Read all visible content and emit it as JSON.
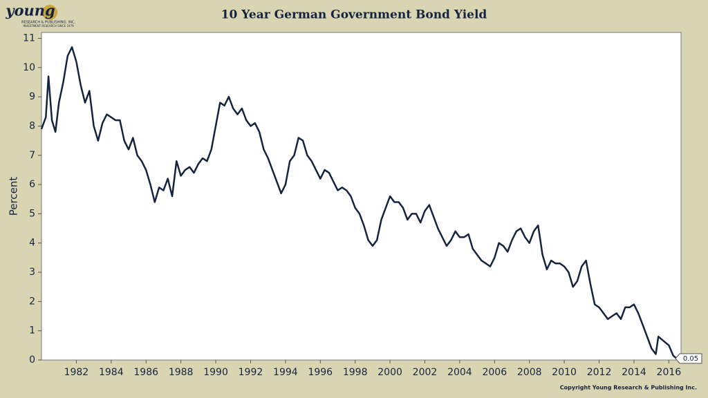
{
  "logo": {
    "name": "young",
    "line1": "RESEARCH & PUBLISHING, INC.",
    "line2": "INVESTMENT RESEARCH SINCE 1979"
  },
  "copyright": "Copyright Young Research & Publishing Inc.",
  "chart_data": {
    "type": "line",
    "title": "10 Year German Government Bond Yield",
    "y_label": "Percent",
    "color": "#14243f",
    "x": [
      1980.0,
      1980.25,
      1980.4,
      1980.6,
      1980.8,
      1981.0,
      1981.25,
      1981.5,
      1981.75,
      1982.0,
      1982.25,
      1982.5,
      1982.75,
      1983.0,
      1983.25,
      1983.5,
      1983.75,
      1984.0,
      1984.25,
      1984.5,
      1984.75,
      1985.0,
      1985.25,
      1985.5,
      1985.75,
      1986.0,
      1986.25,
      1986.5,
      1986.75,
      1987.0,
      1987.25,
      1987.5,
      1987.75,
      1988.0,
      1988.25,
      1988.5,
      1988.75,
      1989.0,
      1989.25,
      1989.5,
      1989.75,
      1990.0,
      1990.25,
      1990.5,
      1990.75,
      1991.0,
      1991.25,
      1991.5,
      1991.75,
      1992.0,
      1992.25,
      1992.5,
      1992.75,
      1993.0,
      1993.25,
      1993.5,
      1993.75,
      1994.0,
      1994.25,
      1994.5,
      1994.75,
      1995.0,
      1995.25,
      1995.5,
      1995.75,
      1996.0,
      1996.25,
      1996.5,
      1996.75,
      1997.0,
      1997.25,
      1997.5,
      1997.75,
      1998.0,
      1998.25,
      1998.5,
      1998.75,
      1999.0,
      1999.25,
      1999.5,
      1999.75,
      2000.0,
      2000.25,
      2000.5,
      2000.75,
      2001.0,
      2001.25,
      2001.5,
      2001.75,
      2002.0,
      2002.25,
      2002.5,
      2002.75,
      2003.0,
      2003.25,
      2003.5,
      2003.75,
      2004.0,
      2004.25,
      2004.5,
      2004.75,
      2005.0,
      2005.25,
      2005.5,
      2005.75,
      2006.0,
      2006.25,
      2006.5,
      2006.75,
      2007.0,
      2007.25,
      2007.5,
      2007.75,
      2008.0,
      2008.25,
      2008.5,
      2008.75,
      2009.0,
      2009.25,
      2009.5,
      2009.75,
      2010.0,
      2010.25,
      2010.5,
      2010.75,
      2011.0,
      2011.25,
      2011.5,
      2011.75,
      2012.0,
      2012.25,
      2012.5,
      2012.75,
      2013.0,
      2013.25,
      2013.5,
      2013.75,
      2014.0,
      2014.25,
      2014.5,
      2014.75,
      2015.0,
      2015.25,
      2015.4,
      2015.6,
      2015.9,
      2016.0,
      2016.25,
      2016.45
    ],
    "values": [
      7.9,
      8.3,
      9.7,
      8.2,
      7.8,
      8.8,
      9.5,
      10.4,
      10.7,
      10.2,
      9.4,
      8.8,
      9.2,
      8.0,
      7.5,
      8.1,
      8.4,
      8.3,
      8.2,
      8.2,
      7.5,
      7.2,
      7.6,
      7.0,
      6.8,
      6.5,
      6.0,
      5.4,
      5.9,
      5.8,
      6.2,
      5.6,
      6.8,
      6.3,
      6.5,
      6.6,
      6.4,
      6.7,
      6.9,
      6.8,
      7.2,
      8.0,
      8.8,
      8.7,
      9.0,
      8.6,
      8.4,
      8.6,
      8.2,
      8.0,
      8.1,
      7.8,
      7.2,
      6.9,
      6.5,
      6.1,
      5.7,
      6.0,
      6.8,
      7.0,
      7.6,
      7.5,
      7.0,
      6.8,
      6.5,
      6.2,
      6.5,
      6.4,
      6.1,
      5.8,
      5.9,
      5.8,
      5.6,
      5.2,
      5.0,
      4.6,
      4.1,
      3.9,
      4.1,
      4.8,
      5.2,
      5.6,
      5.4,
      5.4,
      5.2,
      4.8,
      5.0,
      5.0,
      4.7,
      5.1,
      5.3,
      4.9,
      4.5,
      4.2,
      3.9,
      4.1,
      4.4,
      4.2,
      4.2,
      4.3,
      3.8,
      3.6,
      3.4,
      3.3,
      3.2,
      3.5,
      4.0,
      3.9,
      3.7,
      4.1,
      4.4,
      4.5,
      4.2,
      4.0,
      4.4,
      4.6,
      3.6,
      3.1,
      3.4,
      3.3,
      3.3,
      3.2,
      3.0,
      2.5,
      2.7,
      3.2,
      3.4,
      2.6,
      1.9,
      1.8,
      1.6,
      1.4,
      1.5,
      1.6,
      1.4,
      1.8,
      1.8,
      1.9,
      1.6,
      1.2,
      0.8,
      0.4,
      0.2,
      0.8,
      0.7,
      0.55,
      0.5,
      0.15,
      0.05
    ],
    "xlim": [
      1980,
      2016.7
    ],
    "xticks": [
      1982,
      1984,
      1986,
      1988,
      1990,
      1992,
      1994,
      1996,
      1998,
      2000,
      2002,
      2004,
      2006,
      2008,
      2010,
      2012,
      2014,
      2016
    ],
    "ylim": [
      0,
      11.2
    ],
    "yticks": [
      0,
      1,
      2,
      3,
      4,
      5,
      6,
      7,
      8,
      9,
      10,
      11
    ]
  }
}
